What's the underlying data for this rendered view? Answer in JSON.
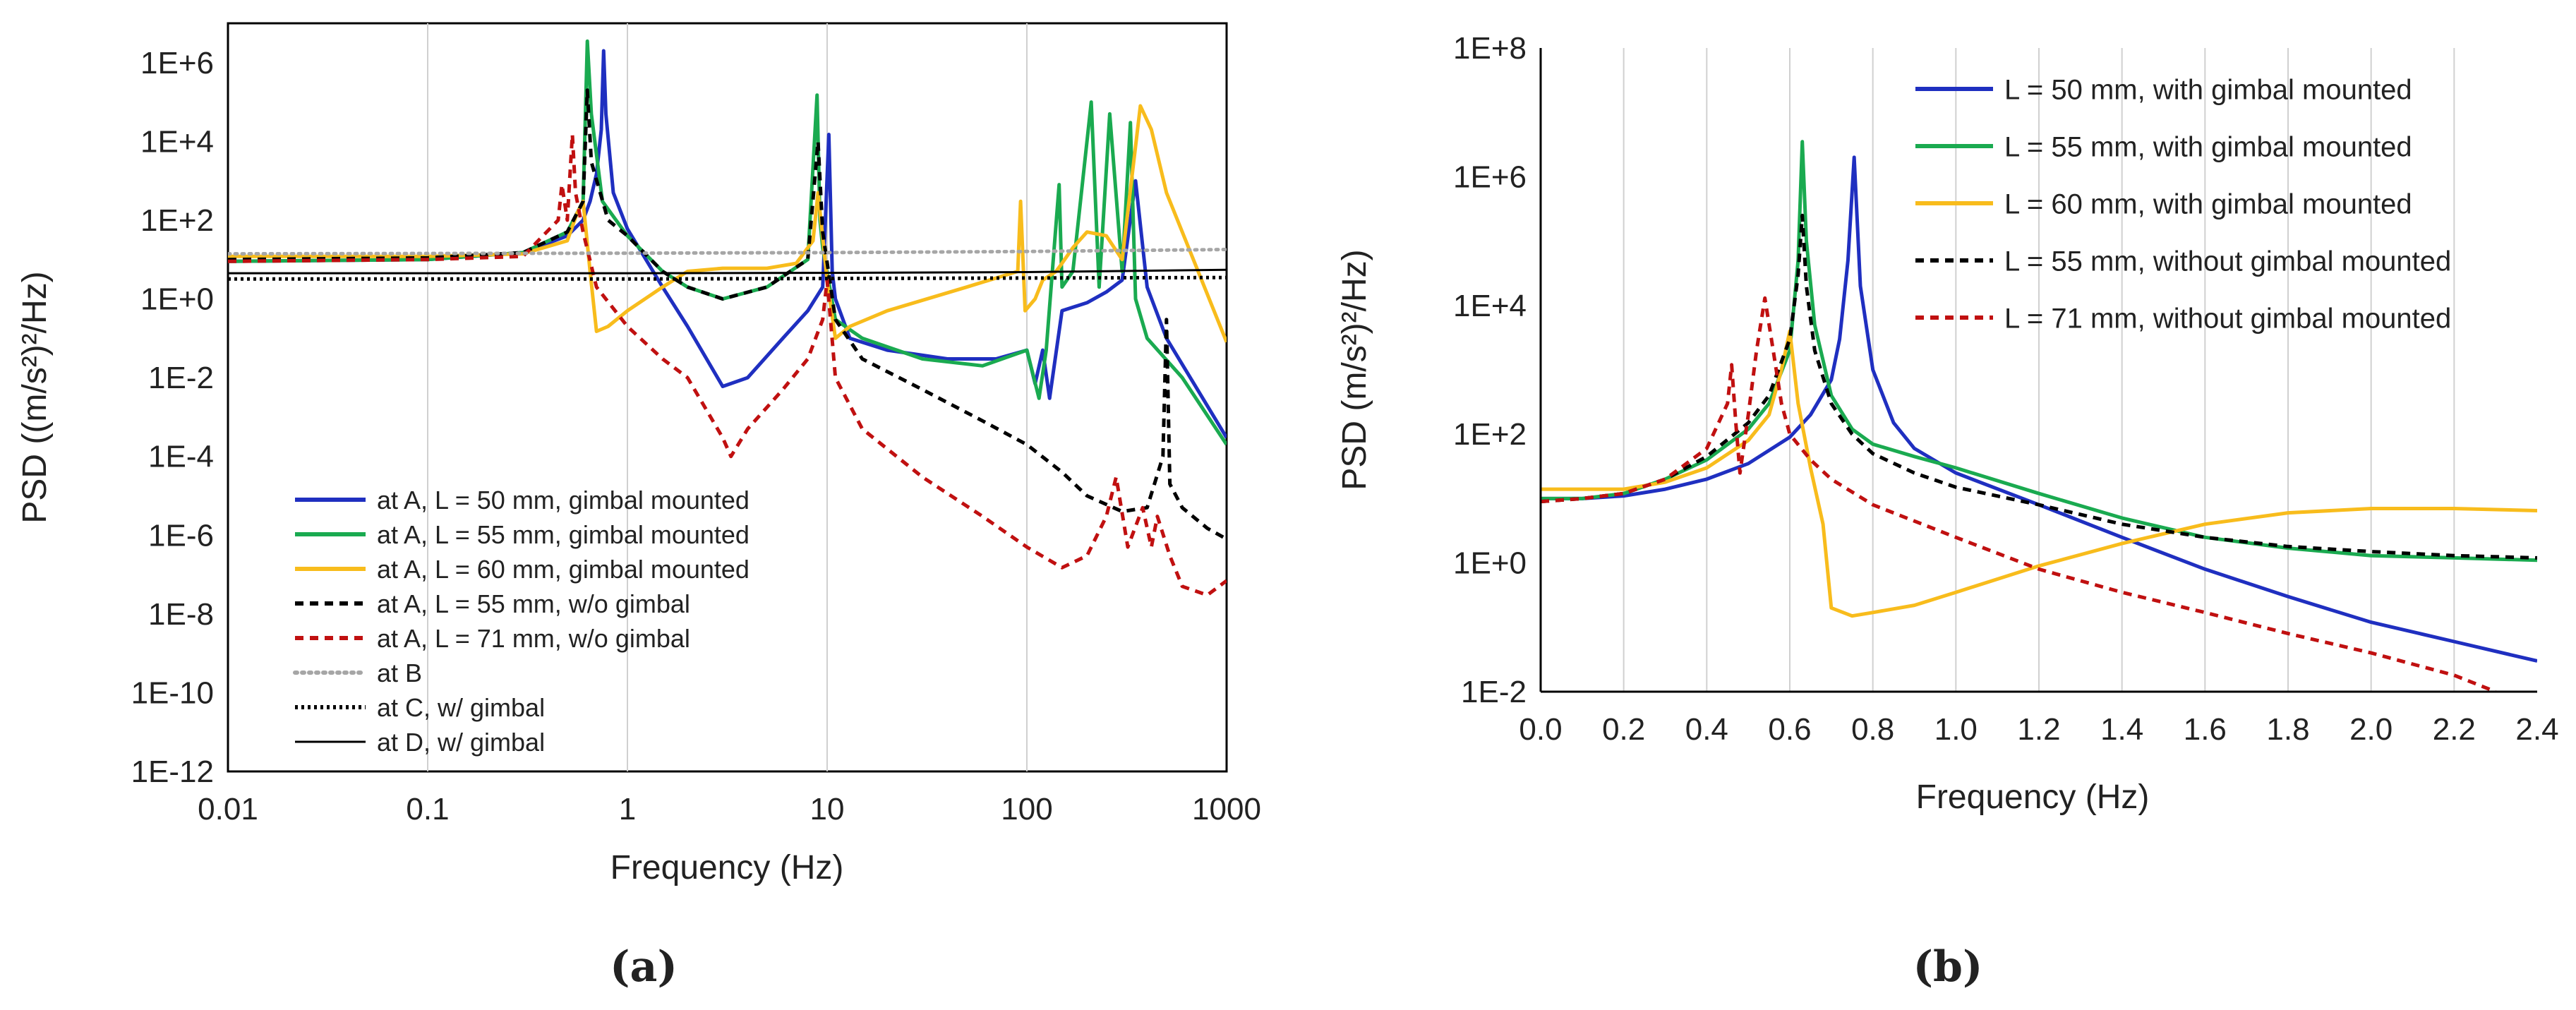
{
  "panels": [
    {
      "label": "(a)"
    },
    {
      "label": "(b)"
    }
  ],
  "chart_data": [
    {
      "type": "line",
      "xlabel": "Frequency (Hz)",
      "ylabel": "PSD ((m/s²)²/Hz)",
      "xscale": "log",
      "yscale": "log",
      "xlim": [
        0.01,
        1000
      ],
      "ylim": [
        1e-12,
        10000000.0
      ],
      "x_ticks": [
        0.01,
        0.1,
        1,
        10,
        100,
        1000
      ],
      "x_tick_labels": [
        "0.01",
        "0.1",
        "1",
        "10",
        "100",
        "1000"
      ],
      "y_ticks": [
        1e-12,
        1e-10,
        1e-08,
        1e-06,
        0.0001,
        0.01,
        1,
        100.0,
        10000.0,
        1000000.0
      ],
      "y_tick_labels": [
        "1E-12",
        "1E-10",
        "1E-8",
        "1E-6",
        "1E-4",
        "1E-2",
        "1E+0",
        "1E+2",
        "1E+4",
        "1E+6"
      ],
      "grid": "vertical",
      "legend_position": "bottom-left",
      "series": [
        {
          "name": "at A, L = 50 mm, gimbal mounted",
          "color": "#1f2fc0",
          "dash": "solid",
          "x": [
            0.01,
            0.1,
            0.3,
            0.5,
            0.6,
            0.65,
            0.7,
            0.74,
            0.76,
            0.78,
            0.85,
            1,
            1.5,
            2,
            3,
            4,
            6,
            8,
            9.5,
            10.2,
            10.6,
            11,
            13,
            20,
            40,
            70,
            100,
            110,
            120,
            130,
            150,
            200,
            250,
            300,
            350,
            400,
            500,
            1000
          ],
          "y": [
            9,
            10,
            15,
            40,
            100,
            300,
            1500,
            20000,
            2000000,
            50000,
            500,
            60,
            2,
            0.2,
            0.006,
            0.01,
            0.1,
            0.5,
            2,
            15000,
            5,
            1,
            0.1,
            0.05,
            0.03,
            0.03,
            0.05,
            0.007,
            0.05,
            0.003,
            0.5,
            0.8,
            1.5,
            3,
            1000,
            2,
            0.1,
            0.0003
          ]
        },
        {
          "name": "at A, L = 55 mm, gimbal mounted",
          "color": "#1aaa50",
          "dash": "solid",
          "x": [
            0.01,
            0.1,
            0.3,
            0.5,
            0.6,
            0.63,
            0.66,
            0.75,
            1,
            1.5,
            2,
            3,
            5,
            8,
            8.9,
            9.2,
            9.5,
            11,
            15,
            30,
            60,
            100,
            115,
            125,
            145,
            150,
            170,
            210,
            230,
            260,
            300,
            330,
            350,
            400,
            600,
            1000
          ],
          "y": [
            9,
            10,
            15,
            50,
            300,
            3500000,
            50000,
            300,
            40,
            5,
            2,
            1,
            2,
            10,
            150000,
            100,
            20,
            0.3,
            0.1,
            0.03,
            0.02,
            0.05,
            0.003,
            0.05,
            800,
            2,
            5,
            100000,
            2,
            50000,
            5,
            30000,
            1,
            0.1,
            0.01,
            0.0002
          ]
        },
        {
          "name": "at A, L = 60 mm, gimbal mounted",
          "color": "#f8bc1c",
          "dash": "solid",
          "x": [
            0.01,
            0.1,
            0.3,
            0.5,
            0.56,
            0.6,
            0.65,
            0.7,
            0.8,
            1,
            1.5,
            2,
            3,
            5,
            7,
            8.5,
            9,
            10,
            11,
            13,
            20,
            50,
            90,
            93,
            98,
            110,
            120,
            140,
            150,
            170,
            200,
            250,
            300,
            370,
            420,
            500,
            1000
          ],
          "y": [
            12,
            12,
            14,
            30,
            150,
            300,
            5,
            0.15,
            0.2,
            0.5,
            2,
            5,
            6,
            6,
            8,
            30,
            500,
            3,
            0.1,
            0.2,
            0.5,
            2,
            5,
            300,
            0.5,
            1,
            3,
            5,
            8,
            20,
            50,
            40,
            10,
            80000,
            20000,
            500,
            0.08
          ]
        },
        {
          "name": "at A, L = 55 mm, w/o gimbal",
          "color": "#000000",
          "dash": "12 9",
          "x": [
            0.01,
            0.1,
            0.3,
            0.5,
            0.6,
            0.63,
            0.66,
            0.8,
            1,
            1.5,
            2,
            3,
            5,
            8,
            9,
            9.5,
            11,
            15,
            30,
            60,
            100,
            150,
            200,
            300,
            400,
            480,
            500,
            520,
            600,
            800,
            1000
          ],
          "y": [
            10,
            11,
            15,
            50,
            300,
            200000,
            3000,
            100,
            40,
            5,
            2,
            1,
            2,
            10,
            10000,
            50,
            0.3,
            0.03,
            0.005,
            0.0008,
            0.0002,
            4e-05,
            1e-05,
            4e-06,
            5e-06,
            0.0001,
            0.3,
            2e-05,
            5e-06,
            1.5e-06,
            8e-07
          ]
        },
        {
          "name": "at A, L = 71 mm, w/o gimbal",
          "color": "#c01010",
          "dash": "12 9",
          "x": [
            0.01,
            0.1,
            0.3,
            0.45,
            0.47,
            0.5,
            0.53,
            0.55,
            0.6,
            0.7,
            1,
            1.5,
            2,
            3,
            3.3,
            4,
            6,
            8,
            9.5,
            10,
            11,
            15,
            30,
            60,
            100,
            150,
            200,
            250,
            280,
            320,
            380,
            420,
            450,
            520,
            600,
            800,
            1000
          ],
          "y": [
            9,
            10,
            12,
            100,
            800,
            100,
            15000,
            500,
            50,
            2,
            0.2,
            0.03,
            0.01,
            0.0003,
            0.0001,
            0.0005,
            0.005,
            0.03,
            0.3,
            3,
            0.01,
            0.0005,
            3e-05,
            3e-06,
            5e-07,
            1.5e-07,
            3e-07,
            3e-06,
            3e-05,
            5e-07,
            5e-06,
            5e-07,
            3e-06,
            3e-07,
            5e-08,
            3e-08,
            7e-08
          ]
        },
        {
          "name": "at B",
          "color": "#a6a6a6",
          "dash": "3 7",
          "x": [
            0.01,
            1,
            10,
            100,
            1000
          ],
          "y": [
            14,
            14.5,
            15,
            16,
            18
          ]
        },
        {
          "name": "at C, w/ gimbal",
          "color": "#000000",
          "dash": "4 5",
          "x": [
            0.01,
            1,
            10,
            100,
            1000
          ],
          "y": [
            3.2,
            3.2,
            3.3,
            3.4,
            3.5
          ]
        },
        {
          "name": "at D, w/ gimbal",
          "color": "#000000",
          "dash": "solid",
          "x": [
            0.01,
            1,
            10,
            100,
            1000
          ],
          "y": [
            4.5,
            4.5,
            4.6,
            4.8,
            5.5
          ]
        }
      ]
    },
    {
      "type": "line",
      "xlabel": "Frequency (Hz)",
      "ylabel": "PSD (m/s²)²/Hz)",
      "xscale": "linear",
      "yscale": "log",
      "xlim": [
        0,
        2.4
      ],
      "ylim": [
        0.01,
        100000000.0
      ],
      "x_ticks": [
        0,
        0.2,
        0.4,
        0.6,
        0.8,
        1.0,
        1.2,
        1.4,
        1.6,
        1.8,
        2.0,
        2.2,
        2.4
      ],
      "x_tick_labels": [
        "0.0",
        "0.2",
        "0.4",
        "0.6",
        "0.8",
        "1.0",
        "1.2",
        "1.4",
        "1.6",
        "1.8",
        "2.0",
        "2.2",
        "2.4"
      ],
      "y_ticks": [
        0.01,
        1,
        100,
        10000,
        1000000,
        100000000
      ],
      "y_tick_labels": [
        "1E-2",
        "1E+0",
        "1E+2",
        "1E+4",
        "1E+6",
        "1E+8"
      ],
      "grid": "vertical",
      "legend_position": "top-right",
      "series": [
        {
          "name": "L = 50 mm, with gimbal mounted",
          "color": "#1f2fc0",
          "dash": "solid",
          "x": [
            0,
            0.1,
            0.2,
            0.3,
            0.4,
            0.5,
            0.6,
            0.65,
            0.7,
            0.72,
            0.74,
            0.755,
            0.77,
            0.8,
            0.85,
            0.9,
            1.0,
            1.2,
            1.4,
            1.6,
            1.8,
            2.0,
            2.2,
            2.4
          ],
          "y": [
            10,
            10,
            11,
            14,
            20,
            35,
            90,
            200,
            700,
            3000,
            50000,
            2000000,
            20000,
            1000,
            150,
            60,
            25,
            8,
            2.5,
            0.8,
            0.3,
            0.12,
            0.06,
            0.03
          ]
        },
        {
          "name": "L = 55 mm, with gimbal mounted",
          "color": "#1aaa50",
          "dash": "solid",
          "x": [
            0,
            0.1,
            0.2,
            0.3,
            0.4,
            0.5,
            0.55,
            0.6,
            0.62,
            0.63,
            0.64,
            0.66,
            0.7,
            0.75,
            0.8,
            0.9,
            1.0,
            1.2,
            1.4,
            1.6,
            1.8,
            2.0,
            2.2,
            2.4
          ],
          "y": [
            10,
            10,
            12,
            20,
            40,
            120,
            300,
            2000,
            50000,
            3500000,
            100000,
            5000,
            400,
            120,
            70,
            45,
            30,
            12,
            5,
            2.5,
            1.7,
            1.3,
            1.2,
            1.1
          ]
        },
        {
          "name": "L = 60 mm, with gimbal mounted",
          "color": "#f8bc1c",
          "dash": "solid",
          "x": [
            0,
            0.1,
            0.2,
            0.3,
            0.4,
            0.5,
            0.55,
            0.58,
            0.6,
            0.62,
            0.65,
            0.68,
            0.7,
            0.75,
            0.8,
            0.9,
            1.0,
            1.2,
            1.4,
            1.6,
            1.8,
            2.0,
            2.2,
            2.4
          ],
          "y": [
            14,
            14,
            14,
            18,
            30,
            80,
            200,
            1000,
            4000,
            300,
            30,
            4,
            0.2,
            0.15,
            0.17,
            0.22,
            0.35,
            0.9,
            2,
            4,
            6,
            7,
            7,
            6.5
          ]
        },
        {
          "name": "L = 55 mm, without gimbal mounted",
          "color": "#000000",
          "dash": "12 9",
          "x": [
            0,
            0.1,
            0.2,
            0.3,
            0.4,
            0.5,
            0.55,
            0.6,
            0.62,
            0.63,
            0.64,
            0.66,
            0.7,
            0.75,
            0.8,
            0.9,
            1.0,
            1.2,
            1.4,
            1.6,
            1.8,
            2.0,
            2.2,
            2.4
          ],
          "y": [
            9,
            10,
            12,
            20,
            45,
            150,
            400,
            3000,
            30000,
            250000,
            20000,
            2000,
            300,
            100,
            50,
            25,
            15,
            8,
            4,
            2.5,
            1.8,
            1.5,
            1.3,
            1.2
          ]
        },
        {
          "name": "L = 71 mm, without gimbal mounted",
          "color": "#c01010",
          "dash": "12 9",
          "x": [
            0,
            0.1,
            0.2,
            0.3,
            0.4,
            0.45,
            0.46,
            0.47,
            0.48,
            0.5,
            0.52,
            0.54,
            0.56,
            0.58,
            0.6,
            0.65,
            0.7,
            0.8,
            1.0,
            1.2,
            1.4,
            1.6,
            1.8,
            2.0,
            2.2,
            2.3
          ],
          "y": [
            9,
            10,
            12,
            20,
            60,
            300,
            1200,
            150,
            25,
            200,
            2000,
            13000,
            2000,
            300,
            100,
            40,
            20,
            8,
            2.5,
            0.8,
            0.35,
            0.17,
            0.08,
            0.04,
            0.018,
            0.01
          ]
        }
      ]
    }
  ]
}
